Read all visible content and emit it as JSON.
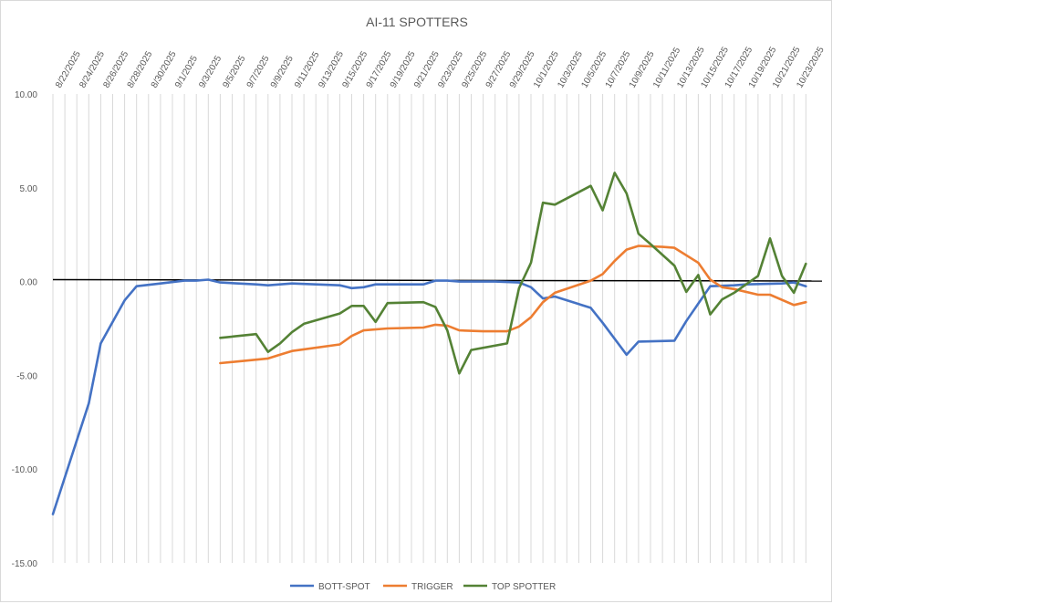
{
  "chart_data": {
    "type": "line",
    "title": "AI-11 SPOTTERS",
    "xlabel": "",
    "ylabel": "",
    "ylim": [
      -15,
      10
    ],
    "y_ticks": [
      "10.00",
      "5.00",
      "0.00",
      "-5.00",
      "-10.00",
      "-15.00"
    ],
    "y_tick_values": [
      10,
      5,
      0,
      -5,
      -10,
      -15
    ],
    "x_tick_labels": [
      "8/22/2025",
      "8/24/2025",
      "8/26/2025",
      "8/28/2025",
      "8/30/2025",
      "9/1/2025",
      "9/3/2025",
      "9/5/2025",
      "9/7/2025",
      "9/9/2025",
      "9/11/2025",
      "9/13/2025",
      "9/15/2025",
      "9/17/2025",
      "9/19/2025",
      "9/21/2025",
      "9/23/2025",
      "9/25/2025",
      "9/27/2025",
      "9/29/2025",
      "10/1/2025",
      "10/3/2025",
      "10/5/2025",
      "10/7/2025",
      "10/9/2025",
      "10/11/2025",
      "10/13/2025",
      "10/15/2025",
      "10/17/2025",
      "10/19/2025",
      "10/21/2025",
      "10/23/2025"
    ],
    "x_range_days": [
      0,
      63
    ],
    "grid": "vertical",
    "legend_position": "bottom",
    "reference_line": {
      "value": 0.1,
      "color": "#000000"
    },
    "series": [
      {
        "name": "BOTT-SPOT",
        "color": "#4472C4",
        "points": [
          [
            0,
            -12.4
          ],
          [
            3,
            -6.5
          ],
          [
            4,
            -3.3
          ],
          [
            6,
            -1.0
          ],
          [
            7,
            -0.25
          ],
          [
            9,
            -0.1
          ],
          [
            11,
            0.05
          ],
          [
            12,
            0.05
          ],
          [
            13,
            0.1
          ],
          [
            14,
            -0.05
          ],
          [
            17,
            -0.15
          ],
          [
            18,
            -0.2
          ],
          [
            20,
            -0.1
          ],
          [
            24,
            -0.2
          ],
          [
            25,
            -0.35
          ],
          [
            26,
            -0.3
          ],
          [
            27,
            -0.15
          ],
          [
            31,
            -0.15
          ],
          [
            32,
            0.05
          ],
          [
            33,
            0.05
          ],
          [
            34,
            0.0
          ],
          [
            37,
            0.0
          ],
          [
            39,
            -0.05
          ],
          [
            40,
            -0.3
          ],
          [
            41,
            -0.9
          ],
          [
            42,
            -0.8
          ],
          [
            45,
            -1.4
          ],
          [
            46,
            -2.2
          ],
          [
            48,
            -3.9
          ],
          [
            49,
            -3.2
          ],
          [
            52,
            -3.15
          ],
          [
            53,
            -2.1
          ],
          [
            55,
            -0.25
          ],
          [
            57,
            -0.2
          ],
          [
            58,
            -0.15
          ],
          [
            61,
            -0.1
          ],
          [
            62,
            -0.05
          ],
          [
            63,
            -0.25
          ]
        ]
      },
      {
        "name": "TRIGGER",
        "color": "#ED7D31",
        "points": [
          [
            14,
            -4.35
          ],
          [
            18,
            -4.1
          ],
          [
            19,
            -3.9
          ],
          [
            20,
            -3.7
          ],
          [
            24,
            -3.35
          ],
          [
            25,
            -2.9
          ],
          [
            26,
            -2.6
          ],
          [
            28,
            -2.5
          ],
          [
            31,
            -2.45
          ],
          [
            32,
            -2.3
          ],
          [
            33,
            -2.35
          ],
          [
            34,
            -2.6
          ],
          [
            36,
            -2.65
          ],
          [
            38,
            -2.65
          ],
          [
            39,
            -2.4
          ],
          [
            40,
            -1.9
          ],
          [
            41,
            -1.1
          ],
          [
            42,
            -0.6
          ],
          [
            45,
            0.05
          ],
          [
            46,
            0.4
          ],
          [
            47,
            1.1
          ],
          [
            48,
            1.7
          ],
          [
            49,
            1.9
          ],
          [
            51,
            1.85
          ],
          [
            52,
            1.8
          ],
          [
            54,
            1.0
          ],
          [
            55,
            0.1
          ],
          [
            56,
            -0.3
          ],
          [
            57,
            -0.4
          ],
          [
            59,
            -0.7
          ],
          [
            60,
            -0.7
          ],
          [
            62,
            -1.25
          ],
          [
            63,
            -1.1
          ]
        ]
      },
      {
        "name": "TOP SPOTTER",
        "color": "#548235",
        "points": [
          [
            14,
            -3.0
          ],
          [
            17,
            -2.8
          ],
          [
            18,
            -3.75
          ],
          [
            19,
            -3.3
          ],
          [
            20,
            -2.7
          ],
          [
            21,
            -2.25
          ],
          [
            24,
            -1.7
          ],
          [
            25,
            -1.3
          ],
          [
            26,
            -1.3
          ],
          [
            27,
            -2.15
          ],
          [
            28,
            -1.15
          ],
          [
            31,
            -1.1
          ],
          [
            32,
            -1.35
          ],
          [
            33,
            -2.6
          ],
          [
            34,
            -4.9
          ],
          [
            35,
            -3.65
          ],
          [
            38,
            -3.3
          ],
          [
            39,
            -0.35
          ],
          [
            40,
            1.0
          ],
          [
            41,
            4.2
          ],
          [
            42,
            4.1
          ],
          [
            45,
            5.1
          ],
          [
            46,
            3.8
          ],
          [
            47,
            5.8
          ],
          [
            48,
            4.7
          ],
          [
            49,
            2.55
          ],
          [
            50,
            2.0
          ],
          [
            52,
            0.85
          ],
          [
            53,
            -0.55
          ],
          [
            54,
            0.35
          ],
          [
            55,
            -1.75
          ],
          [
            56,
            -0.95
          ],
          [
            57,
            -0.6
          ],
          [
            59,
            0.3
          ],
          [
            60,
            2.3
          ],
          [
            61,
            0.3
          ],
          [
            62,
            -0.6
          ],
          [
            63,
            0.95
          ]
        ]
      }
    ]
  }
}
